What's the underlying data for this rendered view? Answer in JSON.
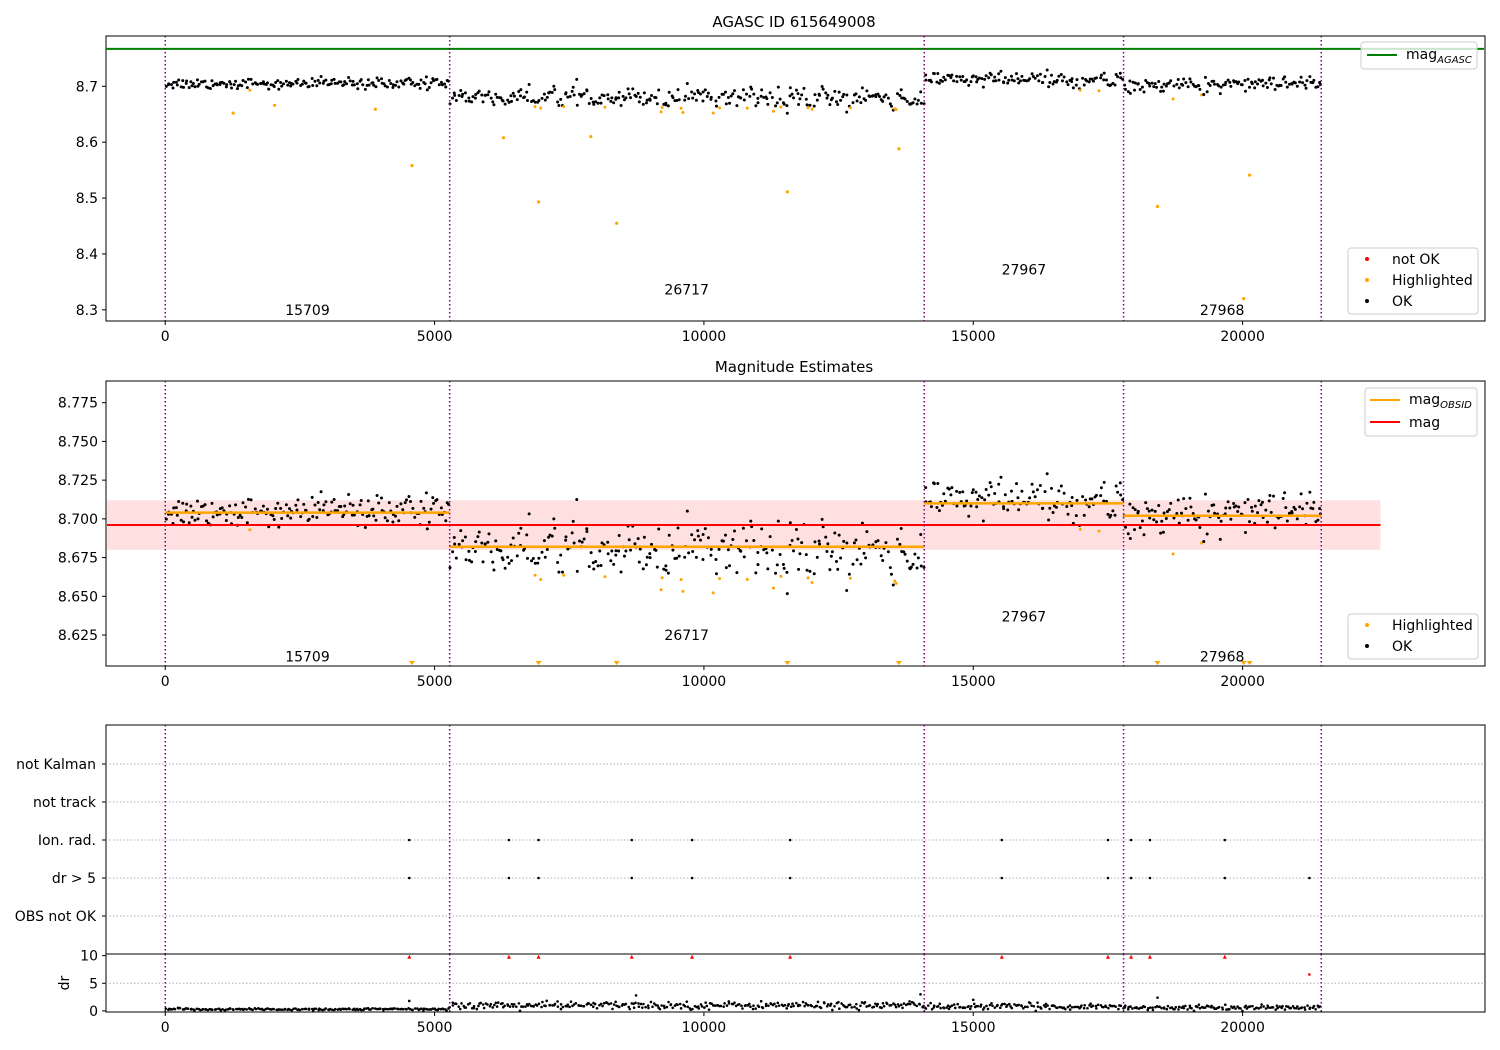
{
  "chart_data": [
    {
      "type": "scatter",
      "title": "AGASC ID 615649008",
      "xlim": [
        -1100,
        24500
      ],
      "ylim": [
        8.28,
        8.79
      ],
      "xticks": [
        0,
        5000,
        10000,
        15000,
        20000
      ],
      "yticks": [
        8.3,
        8.4,
        8.5,
        8.6,
        8.7
      ],
      "ytick_labels": [
        "8.3",
        "8.4",
        "8.5",
        "8.6",
        "8.7"
      ],
      "obs_boundaries": [
        0,
        5280,
        14090,
        17790,
        21460
      ],
      "obsid_labels": [
        {
          "text": "15709",
          "x": 2640,
          "y": 8.3
        },
        {
          "text": "26717",
          "x": 9680,
          "y": 8.336
        },
        {
          "text": "27967",
          "x": 15940,
          "y": 8.372
        },
        {
          "text": "27968",
          "x": 19620,
          "y": 8.3
        }
      ],
      "hlines": [
        {
          "name": "mag_AGASC",
          "y": 8.767,
          "color": "#008000",
          "xrange": [
            -1100,
            24500
          ]
        }
      ],
      "obs_segments": [
        {
          "x0": 0,
          "x1": 5280,
          "mean": 8.705,
          "sd": 0.005,
          "dips": [],
          "orange_low": 8.66
        },
        {
          "x0": 5280,
          "x1": 14090,
          "mean": 8.682,
          "sd": 0.008,
          "dips": [
            [
              6100,
              0.025
            ],
            [
              6900,
              0.03
            ],
            [
              8300,
              0.02
            ],
            [
              9200,
              0.035
            ],
            [
              9600,
              0.035
            ],
            [
              10200,
              0.03
            ],
            [
              11500,
              0.03
            ],
            [
              12000,
              0.035
            ],
            [
              12700,
              0.03
            ],
            [
              13500,
              0.04
            ],
            [
              13900,
              0.025
            ]
          ],
          "orange_low": 8.625
        },
        {
          "x0": 14090,
          "x1": 17790,
          "mean": 8.712,
          "sd": 0.007,
          "dips": [
            [
              16500,
              0.015
            ],
            [
              17000,
              0.02
            ],
            [
              17500,
              0.015
            ]
          ],
          "orange_low": 8.67
        },
        {
          "x0": 17790,
          "x1": 21460,
          "mean": 8.703,
          "sd": 0.007,
          "dips": [
            [
              18700,
              0.015
            ],
            [
              19300,
              0.02
            ],
            [
              19900,
              0.015
            ]
          ],
          "orange_low": 8.67
        }
      ],
      "highlighted_outliers": [
        {
          "x": 1260,
          "y": 8.652
        },
        {
          "x": 2030,
          "y": 8.666
        },
        {
          "x": 3900,
          "y": 8.659
        },
        {
          "x": 4580,
          "y": 8.558
        },
        {
          "x": 6280,
          "y": 8.608
        },
        {
          "x": 6930,
          "y": 8.493
        },
        {
          "x": 7900,
          "y": 8.61
        },
        {
          "x": 8380,
          "y": 8.455
        },
        {
          "x": 11550,
          "y": 8.511
        },
        {
          "x": 13620,
          "y": 8.588
        },
        {
          "x": 18420,
          "y": 8.485
        },
        {
          "x": 20020,
          "y": 8.32
        },
        {
          "x": 20130,
          "y": 8.541
        }
      ],
      "legend": [
        {
          "label": "mag",
          "sub": "AGASC",
          "kind": "line",
          "color": "#008000"
        },
        {
          "label": "not OK",
          "kind": "point",
          "color": "#ff0000"
        },
        {
          "label": "Highlighted",
          "kind": "point",
          "color": "#ffa500"
        },
        {
          "label": "OK",
          "kind": "point",
          "color": "#000000"
        }
      ]
    },
    {
      "type": "scatter",
      "title": "Magnitude Estimates",
      "xlim": [
        -1100,
        24500
      ],
      "ylim": [
        8.605,
        8.789
      ],
      "xticks": [
        0,
        5000,
        10000,
        15000,
        20000
      ],
      "yticks": [
        8.625,
        8.65,
        8.675,
        8.7,
        8.725,
        8.75,
        8.775
      ],
      "ytick_labels": [
        "8.625",
        "8.650",
        "8.675",
        "8.700",
        "8.725",
        "8.750",
        "8.775"
      ],
      "obs_boundaries": [
        0,
        5280,
        14090,
        17790,
        21460
      ],
      "obsid_labels": [
        {
          "text": "15709",
          "x": 2640,
          "y": 8.611
        },
        {
          "text": "26717",
          "x": 9680,
          "y": 8.625
        },
        {
          "text": "27967",
          "x": 15940,
          "y": 8.637
        },
        {
          "text": "27968",
          "x": 19620,
          "y": 8.611
        }
      ],
      "mag_line": {
        "y": 8.696,
        "band": [
          8.68,
          8.712
        ],
        "xrange": [
          -1100,
          22560
        ],
        "color": "#ff0000"
      },
      "obsid_mag": [
        {
          "x0": 0,
          "x1": 5280,
          "y": 8.704
        },
        {
          "x0": 5280,
          "x1": 14090,
          "y": 8.682
        },
        {
          "x0": 14090,
          "x1": 17790,
          "y": 8.71
        },
        {
          "x0": 17790,
          "x1": 21460,
          "y": 8.702
        }
      ],
      "clipped_points_x": [
        4580,
        6930,
        8380,
        11550,
        13620,
        18420,
        20020,
        20130
      ],
      "legend": [
        {
          "label": "mag",
          "sub": "OBSID",
          "kind": "line",
          "color": "#ffa500"
        },
        {
          "label": "mag",
          "kind": "line",
          "color": "#ff0000"
        },
        {
          "label": "Highlighted",
          "kind": "point",
          "color": "#ffa500"
        },
        {
          "label": "OK",
          "kind": "point",
          "color": "#000000"
        }
      ]
    },
    {
      "type": "scatter",
      "title": "",
      "xlim": [
        -1100,
        24500
      ],
      "categories": [
        "OBS not OK",
        "dr > 5",
        "Ion. rad.",
        "not track",
        "not Kalman"
      ],
      "obs_boundaries": [
        0,
        5280,
        14090,
        17790,
        21460
      ],
      "flag_points": {
        "Ion. rad.": [
          4530,
          6380,
          6930,
          8660,
          9780,
          11600,
          15530,
          17500,
          17930,
          18280,
          19670
        ],
        "dr > 5": [
          4530,
          6380,
          6930,
          8660,
          9780,
          11600,
          15530,
          17500,
          17930,
          18280,
          19670,
          21240
        ]
      }
    },
    {
      "type": "scatter",
      "title": "",
      "xlim": [
        -1100,
        24500
      ],
      "ylim": [
        -0.2,
        10.3
      ],
      "ylabel": "dr",
      "xticks": [
        0,
        5000,
        10000,
        15000,
        20000
      ],
      "yticks": [
        0,
        5,
        10
      ],
      "ytick_labels": [
        "0",
        "5",
        "10"
      ],
      "obs_boundaries": [
        0,
        5280,
        14090,
        17790,
        21460
      ],
      "dr_levels": [
        {
          "x0": 0,
          "x1": 5280,
          "mean": 0.3
        },
        {
          "x0": 5280,
          "x1": 14090,
          "mean": 1.0
        },
        {
          "x0": 14090,
          "x1": 17790,
          "mean": 0.8
        },
        {
          "x0": 17790,
          "x1": 21460,
          "mean": 0.6
        }
      ],
      "large_dr_x": [
        4530,
        6380,
        6930,
        8660,
        9780,
        11600,
        15530,
        17500,
        17930,
        18280,
        19670
      ],
      "extra_points": [
        {
          "x": 21240,
          "y": 6.6
        },
        {
          "x": 4530,
          "y": 1.8
        },
        {
          "x": 8740,
          "y": 2.8
        },
        {
          "x": 18420,
          "y": 2.4
        },
        {
          "x": 14020,
          "y": 3.0
        },
        {
          "x": 15000,
          "y": 2.0
        }
      ]
    }
  ]
}
